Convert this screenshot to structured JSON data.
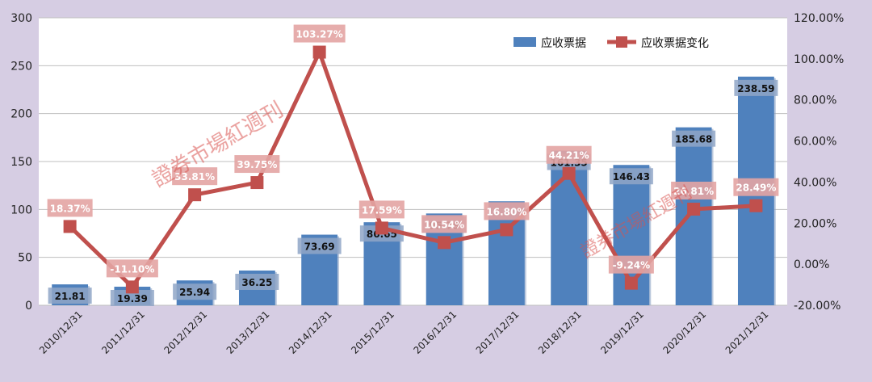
{
  "chart_data": {
    "type": "bar",
    "categories": [
      "2010/12/31",
      "2011/12/31",
      "2012/12/31",
      "2013/12/31",
      "2014/12/31",
      "2015/12/31",
      "2016/12/31",
      "2017/12/31",
      "2018/12/31",
      "2019/12/31",
      "2020/12/31",
      "2021/12/31"
    ],
    "series": [
      {
        "name": "应收票据",
        "type": "bar",
        "axis": "left",
        "values": [
          21.81,
          19.39,
          25.94,
          36.25,
          73.69,
          86.65,
          95.79,
          108.5,
          161.35,
          146.43,
          185.68,
          238.59
        ],
        "labels": [
          "21.81",
          "19.39",
          "25.94",
          "36.25",
          "73.69",
          "86.65",
          "95.79",
          "",
          "161.35",
          "146.43",
          "185.68",
          "238.59"
        ]
      },
      {
        "name": "应收票据变化",
        "type": "line",
        "axis": "right",
        "values": [
          18.37,
          -11.1,
          33.81,
          39.75,
          103.27,
          17.59,
          10.54,
          16.8,
          44.21,
          -9.24,
          26.81,
          28.49
        ],
        "labels": [
          "18.37%",
          "-11.10%",
          "33.81%",
          "39.75%",
          "103.27%",
          "17.59%",
          "10.54%",
          "16.80%",
          "44.21%",
          "-9.24%",
          "26.81%",
          "28.49%"
        ]
      }
    ],
    "y_left": {
      "ylim": [
        0,
        300
      ],
      "ticks": [
        "0",
        "50",
        "100",
        "150",
        "200",
        "250",
        "300"
      ]
    },
    "y_right": {
      "ylim": [
        -20,
        120
      ],
      "ticks": [
        "-20.00%",
        "0.00%",
        "20.00%",
        "40.00%",
        "60.00%",
        "80.00%",
        "100.00%",
        "120.00%"
      ]
    },
    "title": "",
    "xlabel": "",
    "ylabel": "",
    "grid": true,
    "legend_position": "top-right",
    "colors": {
      "bar": "#4f81bd",
      "line": "#c0504d",
      "background": "#d6cde3",
      "plot": "#ffffff"
    }
  },
  "watermark": {
    "text": "證券市場紅週刊"
  }
}
